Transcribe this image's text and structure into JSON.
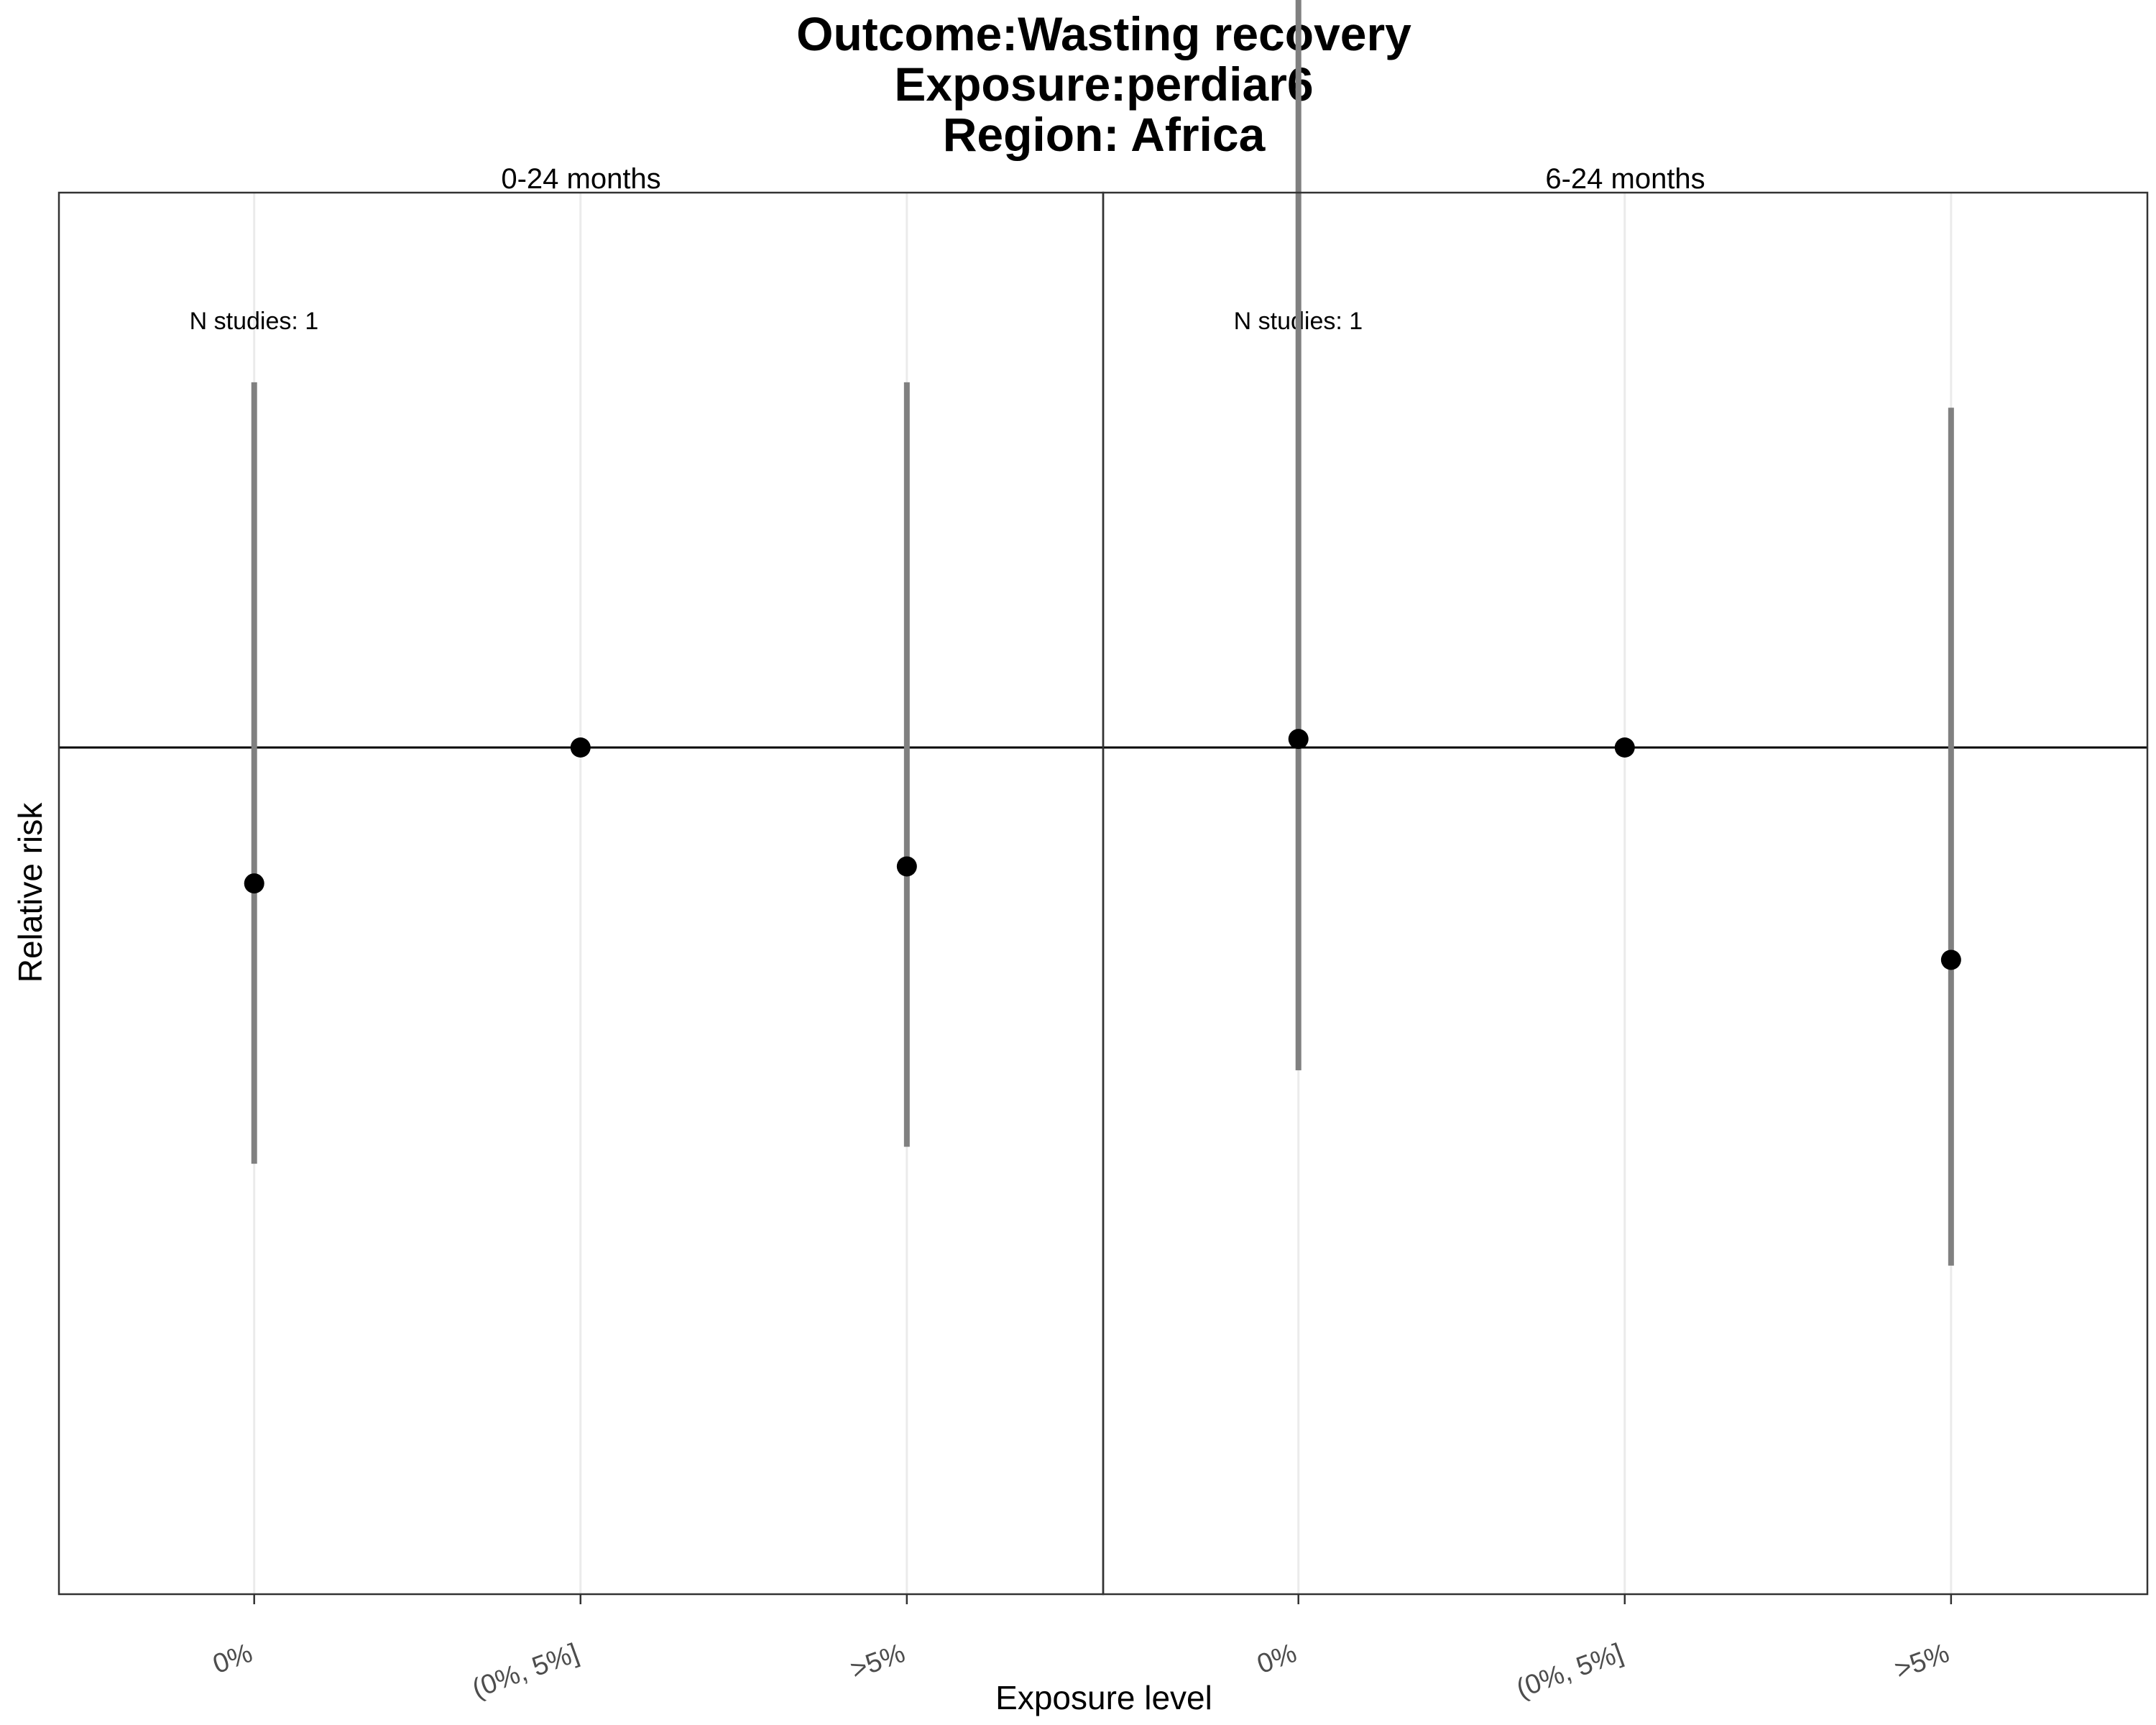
{
  "chart_data": {
    "type": "scatter",
    "title_lines": [
      "Outcome:Wasting recovery",
      "Exposure:perdiar6",
      "Region: Africa"
    ],
    "xlabel": "Exposure level",
    "ylabel": "Relative risk",
    "categories": [
      "0%",
      "(0%, 5%]",
      ">5%"
    ],
    "ylim": [
      0.35,
      2.0
    ],
    "reference_line": 1.0,
    "y_tick_labels_shown": false,
    "grid": "vertical major lines only",
    "colors": {
      "point": "#000000",
      "errorbar": "#808080",
      "gridline": "#ebebeb",
      "panel_border": "#333333",
      "reference_line": "#000000"
    },
    "panels": [
      {
        "label": "0-24 months",
        "annotation": "N studies: 1",
        "points": [
          {
            "category": "0%",
            "estimate": 0.84,
            "ci_lower": 0.51,
            "ci_upper": 1.43
          },
          {
            "category": "(0%, 5%]",
            "estimate": 1.0
          },
          {
            "category": ">5%",
            "estimate": 0.86,
            "ci_lower": 0.53,
            "ci_upper": 1.43
          }
        ]
      },
      {
        "label": "6-24 months",
        "annotation": "N studies: 1",
        "points": [
          {
            "category": "0%",
            "estimate": 1.01,
            "ci_lower": 0.62,
            "ci_upper": 1.9
          },
          {
            "category": "(0%, 5%]",
            "estimate": 1.0
          },
          {
            "category": ">5%",
            "estimate": 0.75,
            "ci_lower": 0.39,
            "ci_upper": 1.4
          }
        ]
      }
    ]
  }
}
